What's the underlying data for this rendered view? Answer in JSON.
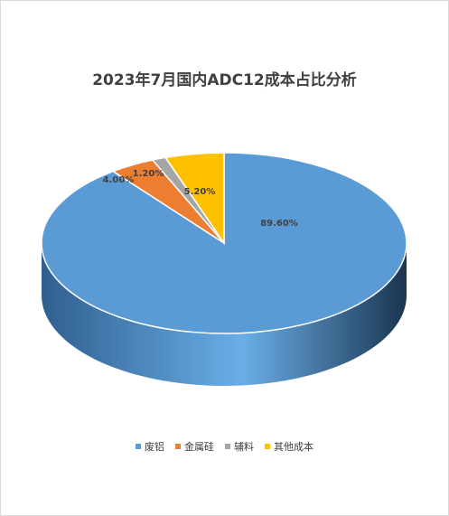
{
  "chart_data": {
    "type": "pie",
    "title": "2023年7月国内ADC12成本占比分析",
    "slices": [
      {
        "label": "废铝",
        "value": 89.6,
        "display": "89.60%",
        "color": "#5b9bd5"
      },
      {
        "label": "金属硅",
        "value": 4.0,
        "display": "4.00%",
        "color": "#ed7d31"
      },
      {
        "label": "辅料",
        "value": 1.2,
        "display": "1.20%",
        "color": "#a5a5a5"
      },
      {
        "label": "其他成本",
        "value": 5.2,
        "display": "5.20%",
        "color": "#ffc000"
      }
    ],
    "legend_position": "bottom"
  }
}
